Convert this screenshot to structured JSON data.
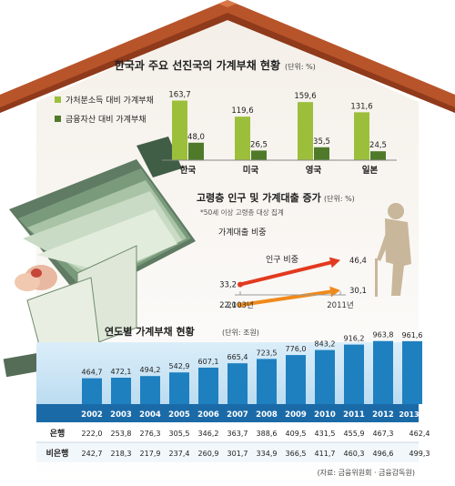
{
  "chart_data": [
    {
      "type": "bar",
      "title": "한국과 주요 선진국의 가계부채 현황",
      "unit": "(단위: %)",
      "categories": [
        "한국",
        "미국",
        "영국",
        "일본"
      ],
      "series": [
        {
          "name": "가처분소득 대비 가계부채",
          "values": [
            163.7,
            119.6,
            159.6,
            131.6
          ],
          "labels": [
            "163,7",
            "119,6",
            "159,6",
            "131,6"
          ],
          "color": "#9cbf3b"
        },
        {
          "name": "금융자산 대비 가계부채",
          "values": [
            48.0,
            26.5,
            35.5,
            24.5
          ],
          "labels": [
            "48,0",
            "26,5",
            "35,5",
            "24,5"
          ],
          "color": "#4f7a2a"
        }
      ]
    },
    {
      "type": "line",
      "title": "고령층 인구 및 가계대출 증가",
      "unit": "(단위: %)",
      "note": "*50세 이상 고령층 대상 집계",
      "x": [
        "2003년",
        "2011년"
      ],
      "series": [
        {
          "name": "가계대출 비중",
          "values": [
            33.2,
            46.4
          ],
          "labels": [
            "33,2",
            "46,4"
          ],
          "color": "#e23a1f"
        },
        {
          "name": "인구 비중",
          "values": [
            22.1,
            30.1
          ],
          "labels": [
            "22,1",
            "30,1"
          ],
          "color": "#f08a1c"
        }
      ]
    },
    {
      "type": "bar",
      "title": "연도별 가계부채 현황",
      "unit": "(단위: 조원)",
      "categories": [
        "2002",
        "2003",
        "2004",
        "2005",
        "2006",
        "2007",
        "2008",
        "2009",
        "2010",
        "2011",
        "2012",
        "2013년 3월"
      ],
      "values": [
        464.7,
        472.1,
        494.2,
        542.9,
        607.1,
        665.4,
        723.5,
        776.0,
        843.2,
        916.2,
        963.8,
        961.6
      ],
      "labels": [
        "464,7",
        "472,1",
        "494,2",
        "542,9",
        "607,1",
        "665,4",
        "723,5",
        "776,0",
        "843,2",
        "916,2",
        "963,8",
        "961,6"
      ],
      "color": "#1f80c0",
      "table": {
        "rows": [
          {
            "name": "은행",
            "values": [
              "222,0",
              "253,8",
              "276,3",
              "305,5",
              "346,2",
              "363,7",
              "388,6",
              "409,5",
              "431,5",
              "455,9",
              "467,3",
              "462,4"
            ]
          },
          {
            "name": "비은행",
            "values": [
              "242,7",
              "218,3",
              "217,9",
              "237,4",
              "260,9",
              "301,7",
              "334,9",
              "366,5",
              "411,7",
              "460,3",
              "496,6",
              "499,3"
            ]
          }
        ]
      }
    }
  ],
  "source": "(자료: 금융위원회 · 금융감독원)",
  "colors": {
    "roof": "#b8542a",
    "roof_dark": "#8f3a1b",
    "panel_blue": "#c6e2f3"
  }
}
